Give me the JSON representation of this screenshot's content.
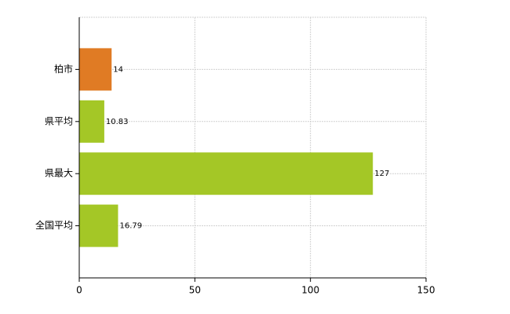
{
  "chart_data": {
    "type": "bar",
    "orientation": "horizontal",
    "categories": [
      "柏市",
      "県平均",
      "県最大",
      "全国平均"
    ],
    "values": [
      14,
      10.83,
      127,
      16.79
    ],
    "colors": [
      "#e07b24",
      "#a4c726",
      "#a4c726",
      "#a4c726"
    ],
    "xlim": [
      0,
      150
    ],
    "xticks": [
      0,
      50,
      100,
      150
    ],
    "grid": true
  }
}
